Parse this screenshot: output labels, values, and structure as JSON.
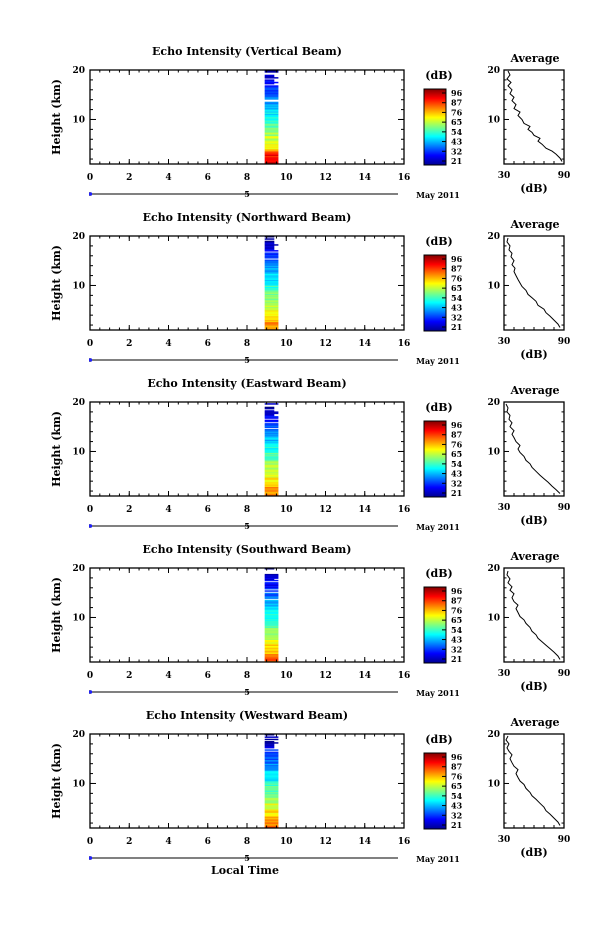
{
  "chart_data": [
    {
      "type": "heatmap",
      "title": "Echo Intensity (Vertical Beam)",
      "ylabel": "Height (km)",
      "x_ticks": [
        "0",
        "2",
        "4",
        "6",
        "8",
        "10",
        "12",
        "14",
        "16"
      ],
      "y_ticks": [
        "20",
        "10"
      ],
      "xlim": [
        0,
        16
      ],
      "ylim": [
        1,
        20
      ],
      "data_time_range": [
        8.9,
        9.6
      ],
      "colorbar": {
        "unit": "(dB)",
        "labels": [
          "96",
          "87",
          "76",
          "65",
          "54",
          "43",
          "32",
          "21"
        ]
      },
      "date_ticks": [
        "5"
      ],
      "date_label": "May 2011",
      "profile": {
        "title": "Average",
        "xlabel": "(dB)",
        "x_ticks": [
          "30",
          "90"
        ],
        "y_ticks": [
          "20",
          "10"
        ],
        "xlim": [
          30,
          90
        ],
        "ylim": [
          1,
          20
        ],
        "points": [
          [
            88,
            1.5
          ],
          [
            86,
            2.2
          ],
          [
            82,
            3
          ],
          [
            78,
            3.6
          ],
          [
            72,
            4.2
          ],
          [
            68,
            5
          ],
          [
            64,
            5.6
          ],
          [
            66,
            6.2
          ],
          [
            60,
            6.8
          ],
          [
            58,
            7.4
          ],
          [
            54,
            8
          ],
          [
            56,
            8.6
          ],
          [
            50,
            9.2
          ],
          [
            48,
            10
          ],
          [
            44,
            10.8
          ],
          [
            46,
            11.5
          ],
          [
            40,
            12.2
          ],
          [
            42,
            13
          ],
          [
            38,
            13.8
          ],
          [
            40,
            14.5
          ],
          [
            36,
            15.2
          ],
          [
            38,
            16
          ],
          [
            34,
            16.8
          ],
          [
            37,
            17.5
          ],
          [
            33,
            18.2
          ],
          [
            36,
            19
          ],
          [
            34,
            19.8
          ]
        ]
      }
    },
    {
      "type": "heatmap",
      "title": "Echo Intensity (Northward Beam)",
      "ylabel": "Height (km)",
      "x_ticks": [
        "0",
        "2",
        "4",
        "6",
        "8",
        "10",
        "12",
        "14",
        "16"
      ],
      "y_ticks": [
        "20",
        "10"
      ],
      "xlim": [
        0,
        16
      ],
      "ylim": [
        1,
        20
      ],
      "data_time_range": [
        8.9,
        9.6
      ],
      "colorbar": {
        "unit": "(dB)",
        "labels": [
          "96",
          "87",
          "76",
          "65",
          "54",
          "43",
          "32",
          "21"
        ]
      },
      "date_ticks": [
        "5"
      ],
      "date_label": "May 2011",
      "profile": {
        "title": "Average",
        "xlabel": "(dB)",
        "x_ticks": [
          "30",
          "90"
        ],
        "y_ticks": [
          "20",
          "10"
        ],
        "xlim": [
          30,
          90
        ],
        "ylim": [
          1,
          20
        ],
        "points": [
          [
            86,
            1.5
          ],
          [
            84,
            2.2
          ],
          [
            80,
            3
          ],
          [
            76,
            3.8
          ],
          [
            72,
            4.5
          ],
          [
            70,
            5.2
          ],
          [
            64,
            6
          ],
          [
            62,
            6.8
          ],
          [
            58,
            7.5
          ],
          [
            54,
            8.2
          ],
          [
            52,
            9
          ],
          [
            48,
            9.8
          ],
          [
            46,
            10.5
          ],
          [
            44,
            11.2
          ],
          [
            42,
            12
          ],
          [
            40,
            12.8
          ],
          [
            41,
            13.5
          ],
          [
            38,
            14.2
          ],
          [
            40,
            15
          ],
          [
            37,
            15.8
          ],
          [
            38,
            16.5
          ],
          [
            35,
            17.2
          ],
          [
            36,
            18
          ],
          [
            33,
            18.8
          ],
          [
            34,
            19.6
          ]
        ]
      }
    },
    {
      "type": "heatmap",
      "title": "Echo Intensity (Eastward Beam)",
      "ylabel": "Height (km)",
      "x_ticks": [
        "0",
        "2",
        "4",
        "6",
        "8",
        "10",
        "12",
        "14",
        "16"
      ],
      "y_ticks": [
        "20",
        "10"
      ],
      "xlim": [
        0,
        16
      ],
      "ylim": [
        1,
        20
      ],
      "data_time_range": [
        8.9,
        9.6
      ],
      "colorbar": {
        "unit": "(dB)",
        "labels": [
          "96",
          "87",
          "76",
          "65",
          "54",
          "43",
          "32",
          "21"
        ]
      },
      "date_ticks": [
        "5"
      ],
      "date_label": "May 2011",
      "profile": {
        "title": "Average",
        "xlabel": "(dB)",
        "x_ticks": [
          "30",
          "90"
        ],
        "y_ticks": [
          "20",
          "10"
        ],
        "xlim": [
          30,
          90
        ],
        "ylim": [
          1,
          20
        ],
        "points": [
          [
            86,
            1.5
          ],
          [
            82,
            2.3
          ],
          [
            78,
            3
          ],
          [
            74,
            3.8
          ],
          [
            70,
            4.5
          ],
          [
            66,
            5.2
          ],
          [
            62,
            6
          ],
          [
            58,
            6.8
          ],
          [
            56,
            7.5
          ],
          [
            52,
            8.2
          ],
          [
            50,
            9
          ],
          [
            46,
            9.8
          ],
          [
            44,
            10.5
          ],
          [
            46,
            11.2
          ],
          [
            42,
            12
          ],
          [
            40,
            12.8
          ],
          [
            38,
            13.5
          ],
          [
            40,
            14.2
          ],
          [
            36,
            15
          ],
          [
            38,
            15.8
          ],
          [
            35,
            16.5
          ],
          [
            36,
            17.3
          ],
          [
            33,
            18
          ],
          [
            34,
            18.8
          ],
          [
            32,
            19.6
          ]
        ]
      }
    },
    {
      "type": "heatmap",
      "title": "Echo Intensity (Southward Beam)",
      "ylabel": "Height (km)",
      "x_ticks": [
        "0",
        "2",
        "4",
        "6",
        "8",
        "10",
        "12",
        "14",
        "16"
      ],
      "y_ticks": [
        "20",
        "10"
      ],
      "xlim": [
        0,
        16
      ],
      "ylim": [
        1,
        20
      ],
      "data_time_range": [
        8.9,
        9.6
      ],
      "colorbar": {
        "unit": "(dB)",
        "labels": [
          "96",
          "87",
          "76",
          "65",
          "54",
          "43",
          "32",
          "21"
        ]
      },
      "date_ticks": [
        "5"
      ],
      "date_label": "May 2011",
      "profile": {
        "title": "Average",
        "xlabel": "(dB)",
        "x_ticks": [
          "30",
          "90"
        ],
        "y_ticks": [
          "20",
          "10"
        ],
        "xlim": [
          30,
          90
        ],
        "ylim": [
          1,
          20
        ],
        "points": [
          [
            86,
            1.5
          ],
          [
            84,
            2.2
          ],
          [
            80,
            3
          ],
          [
            76,
            3.7
          ],
          [
            72,
            4.4
          ],
          [
            68,
            5.1
          ],
          [
            64,
            5.8
          ],
          [
            62,
            6.5
          ],
          [
            58,
            7.2
          ],
          [
            56,
            8
          ],
          [
            52,
            8.8
          ],
          [
            50,
            9.5
          ],
          [
            46,
            10.2
          ],
          [
            44,
            11
          ],
          [
            42,
            11.8
          ],
          [
            44,
            12.5
          ],
          [
            40,
            13.2
          ],
          [
            38,
            14
          ],
          [
            40,
            14.8
          ],
          [
            36,
            15.5
          ],
          [
            38,
            16.2
          ],
          [
            34,
            17
          ],
          [
            36,
            17.8
          ],
          [
            33,
            18.6
          ],
          [
            34,
            19.4
          ]
        ]
      }
    },
    {
      "type": "heatmap",
      "title": "Echo Intensity (Westward Beam)",
      "ylabel": "Height (km)",
      "xlabel": "Local Time",
      "x_ticks": [
        "0",
        "2",
        "4",
        "6",
        "8",
        "10",
        "12",
        "14",
        "16"
      ],
      "y_ticks": [
        "20",
        "10"
      ],
      "xlim": [
        0,
        16
      ],
      "ylim": [
        1,
        20
      ],
      "data_time_range": [
        8.9,
        9.6
      ],
      "colorbar": {
        "unit": "(dB)",
        "labels": [
          "96",
          "87",
          "76",
          "65",
          "54",
          "43",
          "32",
          "21"
        ]
      },
      "date_ticks": [
        "5"
      ],
      "date_label": "May 2011",
      "profile": {
        "title": "Average",
        "xlabel": "(dB)",
        "x_ticks": [
          "30",
          "90"
        ],
        "y_ticks": [
          "20",
          "10"
        ],
        "xlim": [
          30,
          90
        ],
        "ylim": [
          1,
          20
        ],
        "points": [
          [
            86,
            1.5
          ],
          [
            84,
            2.2
          ],
          [
            80,
            3
          ],
          [
            76,
            3.8
          ],
          [
            72,
            4.5
          ],
          [
            70,
            5.2
          ],
          [
            66,
            6
          ],
          [
            62,
            6.8
          ],
          [
            58,
            7.5
          ],
          [
            56,
            8.2
          ],
          [
            52,
            9
          ],
          [
            50,
            9.8
          ],
          [
            46,
            10.5
          ],
          [
            44,
            11.2
          ],
          [
            42,
            12
          ],
          [
            44,
            12.8
          ],
          [
            40,
            13.5
          ],
          [
            38,
            14.2
          ],
          [
            36,
            15
          ],
          [
            38,
            15.8
          ],
          [
            35,
            16.5
          ],
          [
            33,
            17.2
          ],
          [
            35,
            18
          ],
          [
            32,
            18.8
          ],
          [
            34,
            19.6
          ]
        ]
      }
    }
  ]
}
